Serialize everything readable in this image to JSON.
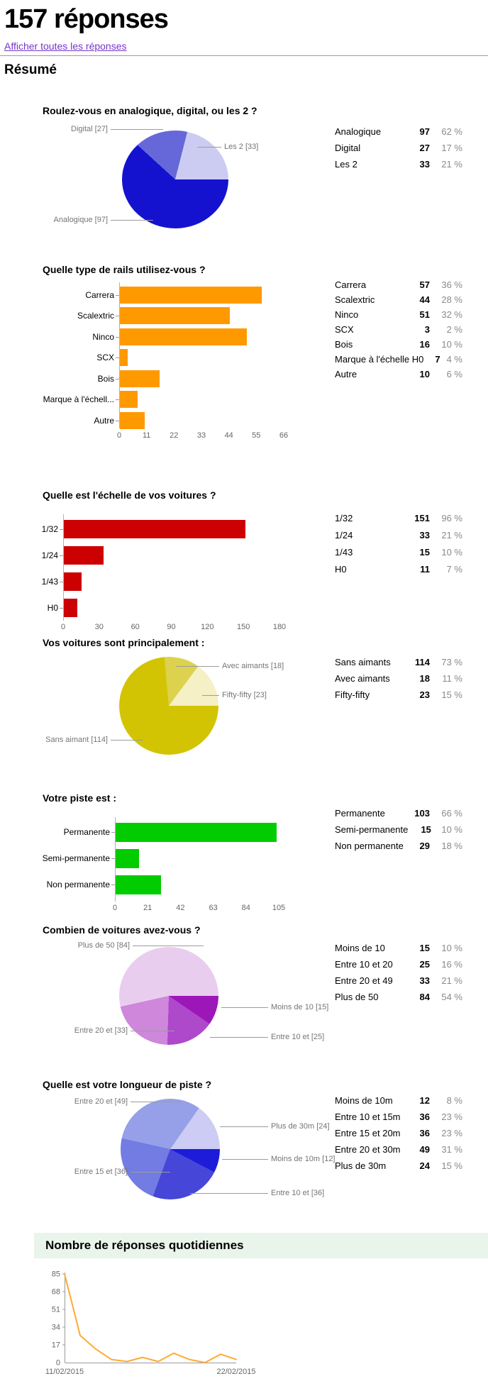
{
  "header": {
    "title": "157 réponses",
    "link": "Afficher toutes les réponses",
    "summary_heading": "Résumé"
  },
  "colors": {
    "link": "#7733cc",
    "daily_band_bg": "#e9f4ea",
    "axis_gray": "#b3b3b3"
  },
  "chart_data": [
    {
      "type": "pie",
      "title": "Roulez-vous en analogique, digital, ou les 2 ?",
      "categories": [
        "Analogique",
        "Digital",
        "Les 2"
      ],
      "values": [
        97,
        27,
        33
      ],
      "colors": [
        "#1412cf",
        "#6668d9",
        "#ccccf2"
      ],
      "pie_labels": [
        "Digital [27]",
        "Les 2 [33]",
        "Analogique [97]"
      ],
      "table": [
        {
          "label": "Analogique",
          "count": "97",
          "pct": "62 %"
        },
        {
          "label": "Digital",
          "count": "27",
          "pct": "17 %"
        },
        {
          "label": "Les 2",
          "count": "33",
          "pct": "21 %"
        }
      ]
    },
    {
      "type": "bar",
      "title": "Quelle type de rails utilisez-vous ?",
      "categories": [
        "Carrera",
        "Scalextric",
        "Ninco",
        "SCX",
        "Bois",
        "Marque à l'échell...",
        "Autre"
      ],
      "values": [
        57,
        44,
        51,
        3,
        16,
        7,
        10
      ],
      "xmax": 66,
      "xticks": [
        "0",
        "11",
        "22",
        "33",
        "44",
        "55",
        "66"
      ],
      "color": "#ff9900",
      "table": [
        {
          "label": "Carrera",
          "count": "57",
          "pct": "36 %"
        },
        {
          "label": "Scalextric",
          "count": "44",
          "pct": "28 %"
        },
        {
          "label": "Ninco",
          "count": "51",
          "pct": "32 %"
        },
        {
          "label": "SCX",
          "count": "3",
          "pct": "2 %"
        },
        {
          "label": "Bois",
          "count": "16",
          "pct": "10 %"
        },
        {
          "label": "Marque à l'échelle H0",
          "count": "7",
          "pct": "4 %"
        },
        {
          "label": "Autre",
          "count": "10",
          "pct": "6 %"
        }
      ]
    },
    {
      "type": "bar",
      "title": "Quelle est l'échelle de vos voitures ?",
      "categories": [
        "1/32",
        "1/24",
        "1/43",
        "H0"
      ],
      "values": [
        151,
        33,
        15,
        11
      ],
      "xmax": 180,
      "xticks": [
        "0",
        "30",
        "60",
        "90",
        "120",
        "150",
        "180"
      ],
      "color": "#cc0000",
      "table": [
        {
          "label": "1/32",
          "count": "151",
          "pct": "96 %"
        },
        {
          "label": "1/24",
          "count": "33",
          "pct": "21 %"
        },
        {
          "label": "1/43",
          "count": "15",
          "pct": "10 %"
        },
        {
          "label": "H0",
          "count": "11",
          "pct": "7 %"
        }
      ]
    },
    {
      "type": "pie",
      "title": "Vos voitures sont principalement :",
      "categories": [
        "Sans aimants",
        "Avec aimants",
        "Fifty-fifty"
      ],
      "values": [
        114,
        18,
        23
      ],
      "colors": [
        "#d3c403",
        "#ddd24e",
        "#f5f0c5"
      ],
      "pie_labels": [
        "Avec aimants [18]",
        "Fifty-fifty [23]",
        "Sans aimant [114]"
      ],
      "table": [
        {
          "label": "Sans aimants",
          "count": "114",
          "pct": "73 %"
        },
        {
          "label": "Avec aimants",
          "count": "18",
          "pct": "11 %"
        },
        {
          "label": "Fifty-fifty",
          "count": "23",
          "pct": "15 %"
        }
      ]
    },
    {
      "type": "bar",
      "title": "Votre piste est :",
      "categories": [
        "Permanente",
        "Semi-permanente",
        "Non permanente"
      ],
      "values": [
        103,
        15,
        29
      ],
      "xmax": 105,
      "xticks": [
        "0",
        "21",
        "42",
        "63",
        "84",
        "105"
      ],
      "color": "#00cc00",
      "table": [
        {
          "label": "Permanente",
          "count": "103",
          "pct": "66 %"
        },
        {
          "label": "Semi-permanente",
          "count": "15",
          "pct": "10 %"
        },
        {
          "label": "Non permanente",
          "count": "29",
          "pct": "18 %"
        }
      ]
    },
    {
      "type": "pie",
      "title": "Combien de voitures avez-vous ?",
      "categories": [
        "Moins de 10",
        "Entre 10 et 20",
        "Entre 20 et 49",
        "Plus de 50"
      ],
      "values": [
        15,
        25,
        33,
        84
      ],
      "colors": [
        "#9c17b8",
        "#af49cb",
        "#ce87db",
        "#e9cdef"
      ],
      "pie_labels": [
        "Plus de 50 [84]",
        "Moins de 10 [15]",
        "Entre 20 et [33]",
        "Entre 10 et [25]"
      ],
      "table": [
        {
          "label": "Moins de 10",
          "count": "15",
          "pct": "10 %"
        },
        {
          "label": "Entre 10 et 20",
          "count": "25",
          "pct": "16 %"
        },
        {
          "label": "Entre 20 et 49",
          "count": "33",
          "pct": "21 %"
        },
        {
          "label": "Plus de 50",
          "count": "84",
          "pct": "54 %"
        }
      ]
    },
    {
      "type": "pie",
      "title": "Quelle est votre longueur de piste ?",
      "categories": [
        "Moins de 10m",
        "Entre 10 et 15m",
        "Entre 15 et 20m",
        "Entre 20 et 30m",
        "Plus de 30m"
      ],
      "values": [
        12,
        36,
        36,
        49,
        24
      ],
      "colors": [
        "#1c1cd9",
        "#4646d8",
        "#727ce2",
        "#95a0e9",
        "#ccccf4"
      ],
      "pie_labels": [
        "Entre 20 et [49]",
        "Plus de 30m [24]",
        "Moins de 10m [12]",
        "Entre 15 et [36]",
        "Entre 10 et [36]"
      ],
      "table": [
        {
          "label": "Moins de 10m",
          "count": "12",
          "pct": "8 %"
        },
        {
          "label": "Entre 10 et 15m",
          "count": "36",
          "pct": "23 %"
        },
        {
          "label": "Entre 15 et 20m",
          "count": "36",
          "pct": "23 %"
        },
        {
          "label": "Entre 20 et 30m",
          "count": "49",
          "pct": "31 %"
        },
        {
          "label": "Plus de 30m",
          "count": "24",
          "pct": "15 %"
        }
      ]
    },
    {
      "type": "line",
      "title": "Nombre de réponses quotidiennes",
      "values": [
        85,
        26,
        13,
        3,
        1,
        5,
        1,
        9,
        3,
        0,
        8,
        3
      ],
      "ylim": [
        0,
        85
      ],
      "yticks": [
        "85",
        "68",
        "51",
        "34",
        "17",
        "0"
      ],
      "xlabels": [
        "11/02/2015",
        "22/02/2015"
      ],
      "color": "#ffaa33",
      "legend_position": "none",
      "grid": false
    }
  ]
}
